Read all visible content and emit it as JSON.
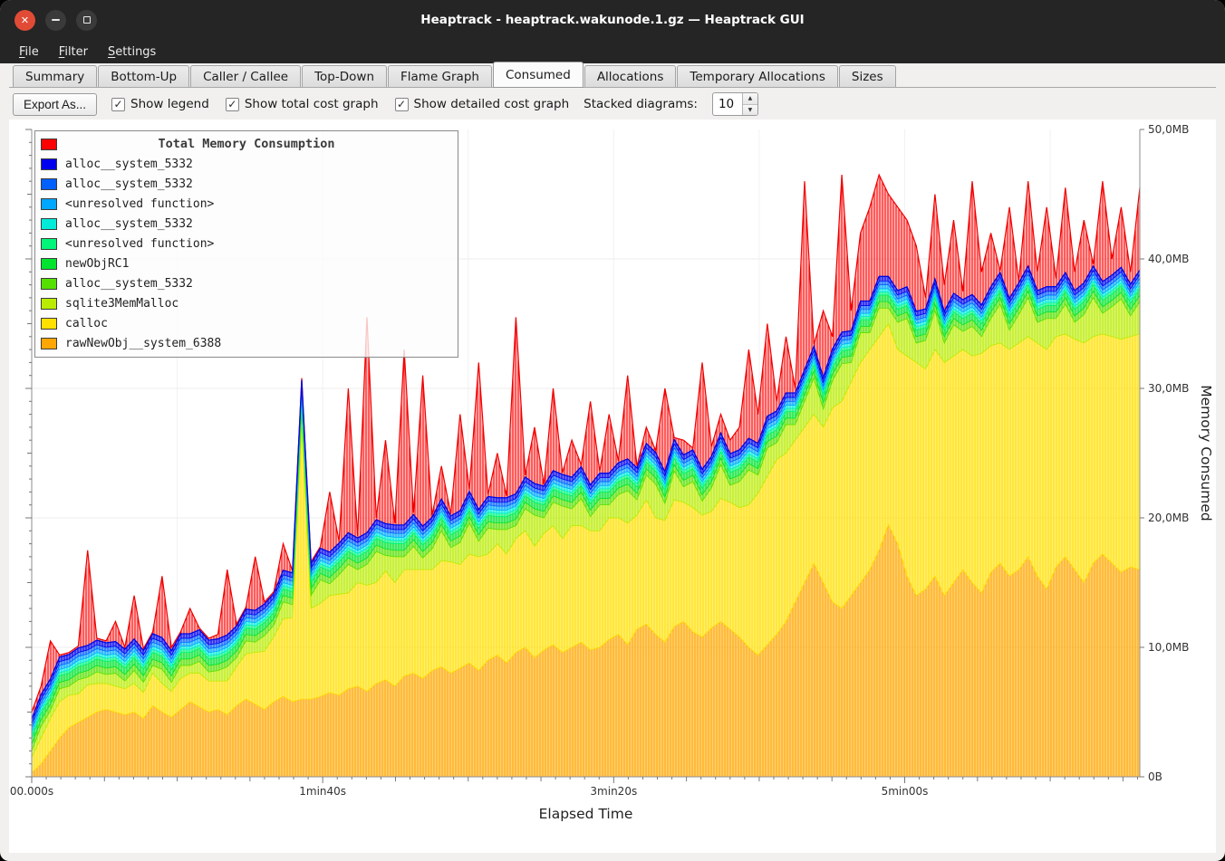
{
  "window": {
    "title": "Heaptrack - heaptrack.wakunode.1.gz — Heaptrack GUI"
  },
  "menu": {
    "items": [
      "File",
      "Filter",
      "Settings"
    ]
  },
  "tabs": {
    "items": [
      "Summary",
      "Bottom-Up",
      "Caller / Callee",
      "Top-Down",
      "Flame Graph",
      "Consumed",
      "Allocations",
      "Temporary Allocations",
      "Sizes"
    ],
    "active": "Consumed"
  },
  "toolbar": {
    "export_label": "Export As...",
    "checkboxes": [
      {
        "label": "Show legend",
        "checked": true
      },
      {
        "label": "Show total cost graph",
        "checked": true
      },
      {
        "label": "Show detailed cost graph",
        "checked": true
      }
    ],
    "stacked_label": "Stacked diagrams:",
    "stacked_value": "10"
  },
  "chart_data": {
    "type": "area",
    "title": "Total Memory Consumption",
    "xlabel": "Elapsed Time",
    "ylabel": "Memory Consumed",
    "ylim": [
      0,
      50
    ],
    "y_unit": "MB",
    "t_step": 3.2,
    "x_ticks": [
      {
        "t": 0,
        "label": "00.000s"
      },
      {
        "t": 100,
        "label": "1min40s"
      },
      {
        "t": 200,
        "label": "3min20s"
      },
      {
        "t": 300,
        "label": "5min00s"
      }
    ],
    "y_ticks": [
      {
        "v": 0,
        "label": "0B"
      },
      {
        "v": 10,
        "label": "10,0MB"
      },
      {
        "v": 20,
        "label": "20,0MB"
      },
      {
        "v": 30,
        "label": "30,0MB"
      },
      {
        "v": 40,
        "label": "40,0MB"
      },
      {
        "v": 50,
        "label": "50,0MB"
      }
    ],
    "legend_position": "top-left",
    "total": {
      "name": "Total Memory Consumption",
      "color": "#ff0000",
      "values": [
        5.0,
        7.0,
        10.5,
        7.5,
        8.0,
        9.0,
        17.5,
        9.0,
        8.5,
        12.0,
        9.0,
        14.0,
        9.5,
        10.0,
        15.5,
        10.0,
        9.5,
        13.0,
        10.0,
        10.5,
        11.0,
        16.0,
        11.5,
        12.0,
        17.0,
        12.5,
        13.0,
        18.0,
        14.0,
        29.5,
        15.0,
        16.0,
        22.0,
        17.0,
        30.0,
        18.0,
        35.5,
        19.0,
        26.0,
        18.5,
        33.0,
        19.0,
        31.0,
        20.0,
        24.0,
        19.5,
        28.0,
        20.0,
        32.0,
        21.0,
        25.0,
        21.0,
        35.5,
        22.0,
        27.0,
        21.5,
        30.0,
        22.0,
        26.0,
        22.5,
        29.0,
        23.0,
        28.0,
        23.5,
        31.0,
        24.0,
        27.0,
        24.5,
        30.0,
        24.0,
        26.0,
        25.0,
        32.0,
        25.5,
        28.0,
        26.0,
        27.0,
        33.0,
        28.0,
        35.0,
        29.0,
        34.0,
        30.0,
        46.0,
        32.0,
        36.0,
        34.0,
        46.5,
        36.0,
        42.0,
        44.0,
        46.5,
        45.0,
        44.0,
        43.0,
        41.0,
        37.0,
        45.0,
        38.0,
        43.0,
        37.5,
        46.0,
        39.0,
        42.0,
        38.0,
        44.0,
        38.0,
        46.0,
        39.0,
        44.0,
        38.5,
        45.5,
        39.0,
        43.0,
        38.0,
        46.0,
        40.0,
        44.0,
        39.0,
        45.5
      ]
    },
    "series": [
      {
        "name": "rawNewObj__system_6388",
        "color": "#ffa700",
        "values": [
          0.3,
          1.0,
          2.0,
          3.0,
          3.8,
          4.2,
          4.6,
          5.0,
          5.2,
          5.0,
          4.8,
          5.0,
          4.5,
          5.5,
          5.0,
          4.6,
          5.2,
          5.8,
          5.4,
          5.0,
          5.2,
          4.8,
          5.5,
          6.0,
          5.6,
          5.2,
          5.8,
          6.2,
          5.8,
          6.0,
          6.0,
          6.2,
          6.5,
          6.3,
          6.8,
          7.0,
          6.6,
          7.2,
          7.5,
          7.0,
          7.8,
          8.0,
          7.6,
          8.2,
          8.5,
          8.0,
          8.4,
          8.8,
          8.2,
          9.0,
          9.4,
          8.8,
          9.6,
          10.0,
          9.2,
          9.8,
          10.2,
          9.6,
          10.0,
          10.4,
          9.8,
          10.0,
          10.6,
          11.0,
          10.2,
          11.4,
          11.8,
          11.0,
          10.4,
          11.6,
          12.0,
          11.2,
          10.8,
          11.5,
          12.0,
          11.4,
          10.8,
          10.0,
          9.4,
          10.2,
          11.0,
          12.0,
          13.5,
          15.0,
          16.5,
          15.0,
          13.5,
          13.0,
          14.0,
          15.0,
          16.0,
          17.5,
          19.5,
          18.0,
          15.5,
          14.0,
          14.5,
          15.5,
          14.0,
          15.0,
          16.0,
          15.0,
          14.2,
          15.8,
          16.5,
          15.5,
          16.0,
          17.0,
          15.5,
          14.5,
          16.2,
          17.0,
          16.0,
          15.0,
          16.5,
          17.2,
          16.5,
          15.8,
          16.2,
          16.0
        ]
      },
      {
        "name": "calloc",
        "color": "#ffe000",
        "values": [
          1.2,
          2.0,
          2.5,
          2.8,
          2.5,
          2.2,
          2.5,
          2.2,
          2.0,
          2.0,
          2.0,
          2.2,
          2.0,
          2.5,
          2.2,
          2.0,
          2.4,
          2.2,
          2.6,
          2.4,
          2.2,
          2.6,
          3.0,
          3.5,
          4.0,
          4.5,
          5.0,
          6.0,
          6.5,
          21.0,
          7.0,
          7.2,
          7.5,
          7.8,
          7.4,
          8.0,
          8.2,
          7.8,
          8.4,
          8.0,
          8.2,
          8.0,
          8.4,
          7.8,
          8.2,
          8.6,
          8.0,
          8.4,
          8.8,
          8.2,
          8.6,
          8.4,
          8.8,
          9.0,
          8.6,
          9.0,
          9.2,
          8.8,
          9.4,
          9.0,
          9.2,
          9.0,
          9.4,
          9.0,
          9.4,
          8.8,
          9.6,
          9.0,
          9.4,
          9.8,
          9.2,
          9.6,
          9.4,
          9.0,
          9.5,
          9.8,
          10.0,
          11.0,
          12.5,
          13.0,
          13.5,
          13.0,
          12.5,
          12.0,
          11.5,
          12.0,
          15.0,
          16.0,
          16.5,
          17.0,
          17.0,
          16.5,
          15.5,
          15.0,
          17.0,
          18.0,
          17.0,
          17.5,
          18.0,
          17.5,
          17.0,
          17.5,
          18.5,
          17.5,
          17.0,
          17.5,
          17.5,
          17.0,
          18.0,
          18.5,
          17.8,
          17.2,
          17.8,
          18.5,
          17.5,
          17.0,
          17.5,
          18.0,
          17.8,
          18.2
        ]
      },
      {
        "name": "sqlite3MemMalloc",
        "color": "#b9ec00",
        "values": [
          0.5,
          0.9,
          0.6,
          1.0,
          0.7,
          1.1,
          0.6,
          0.9,
          0.7,
          1.0,
          0.6,
          1.0,
          0.8,
          0.6,
          1.1,
          0.7,
          1.0,
          0.6,
          0.9,
          0.7,
          0.8,
          1.1,
          0.7,
          1.0,
          0.8,
          1.2,
          0.9,
          1.3,
          1.0,
          1.2,
          1.0,
          1.8,
          0.9,
          1.5,
          2.2,
          1.0,
          1.6,
          2.4,
          1.2,
          2.0,
          1.0,
          1.8,
          0.9,
          1.6,
          2.3,
          1.1,
          1.7,
          2.4,
          1.2,
          2.0,
          1.1,
          1.9,
          1.0,
          1.7,
          2.4,
          1.2,
          1.8,
          2.5,
          1.3,
          2.1,
          1.1,
          2.0,
          1.0,
          1.8,
          2.5,
          1.2,
          1.9,
          2.6,
          1.3,
          2.2,
          1.2,
          2.0,
          1.1,
          1.8,
          2.6,
          1.3,
          2.0,
          2.7,
          1.4,
          2.2,
          1.3,
          2.2,
          1.2,
          2.0,
          2.8,
          1.4,
          2.1,
          2.9,
          1.5,
          2.3,
          1.3,
          2.2,
          1.2,
          2.1,
          2.9,
          1.5,
          2.2,
          3.0,
          1.5,
          2.4,
          1.4,
          2.3,
          1.3,
          2.1,
          3.0,
          1.5,
          2.2,
          3.0,
          1.6,
          2.4,
          1.4,
          2.3,
          1.3,
          2.2,
          3.0,
          1.6,
          2.3,
          3.1,
          1.6,
          2.5
        ]
      },
      {
        "name": "alloc__system_5332",
        "color": "#55e000",
        "flat": 0.5
      },
      {
        "name": "newObjRC1",
        "color": "#00e430",
        "flat": 0.5
      },
      {
        "name": "<unresolved function>",
        "color": "#00f579",
        "flat": 0.25
      },
      {
        "name": "alloc__system_5332",
        "color": "#00ecd9",
        "flat": 0.25
      },
      {
        "name": "<unresolved function>",
        "color": "#00a7ff",
        "flat": 0.3
      },
      {
        "name": "alloc__system_5332",
        "color": "#0061ff",
        "flat": 0.3
      },
      {
        "name": "alloc__system_5332",
        "color": "#0000ee",
        "flat": 0.35
      }
    ],
    "legend": {
      "title": "Total Memory Consumption",
      "title_color": "#ff0000",
      "items": [
        {
          "label": "alloc__system_5332",
          "color": "#0000ee"
        },
        {
          "label": "alloc__system_5332",
          "color": "#0061ff"
        },
        {
          "label": "<unresolved function>",
          "color": "#00a7ff"
        },
        {
          "label": "alloc__system_5332",
          "color": "#00ecd9"
        },
        {
          "label": "<unresolved function>",
          "color": "#00f579"
        },
        {
          "label": "newObjRC1",
          "color": "#00e430"
        },
        {
          "label": "alloc__system_5332",
          "color": "#55e000"
        },
        {
          "label": "sqlite3MemMalloc",
          "color": "#b9ec00"
        },
        {
          "label": "calloc",
          "color": "#ffe000"
        },
        {
          "label": "rawNewObj__system_6388",
          "color": "#ffa700"
        }
      ]
    }
  }
}
